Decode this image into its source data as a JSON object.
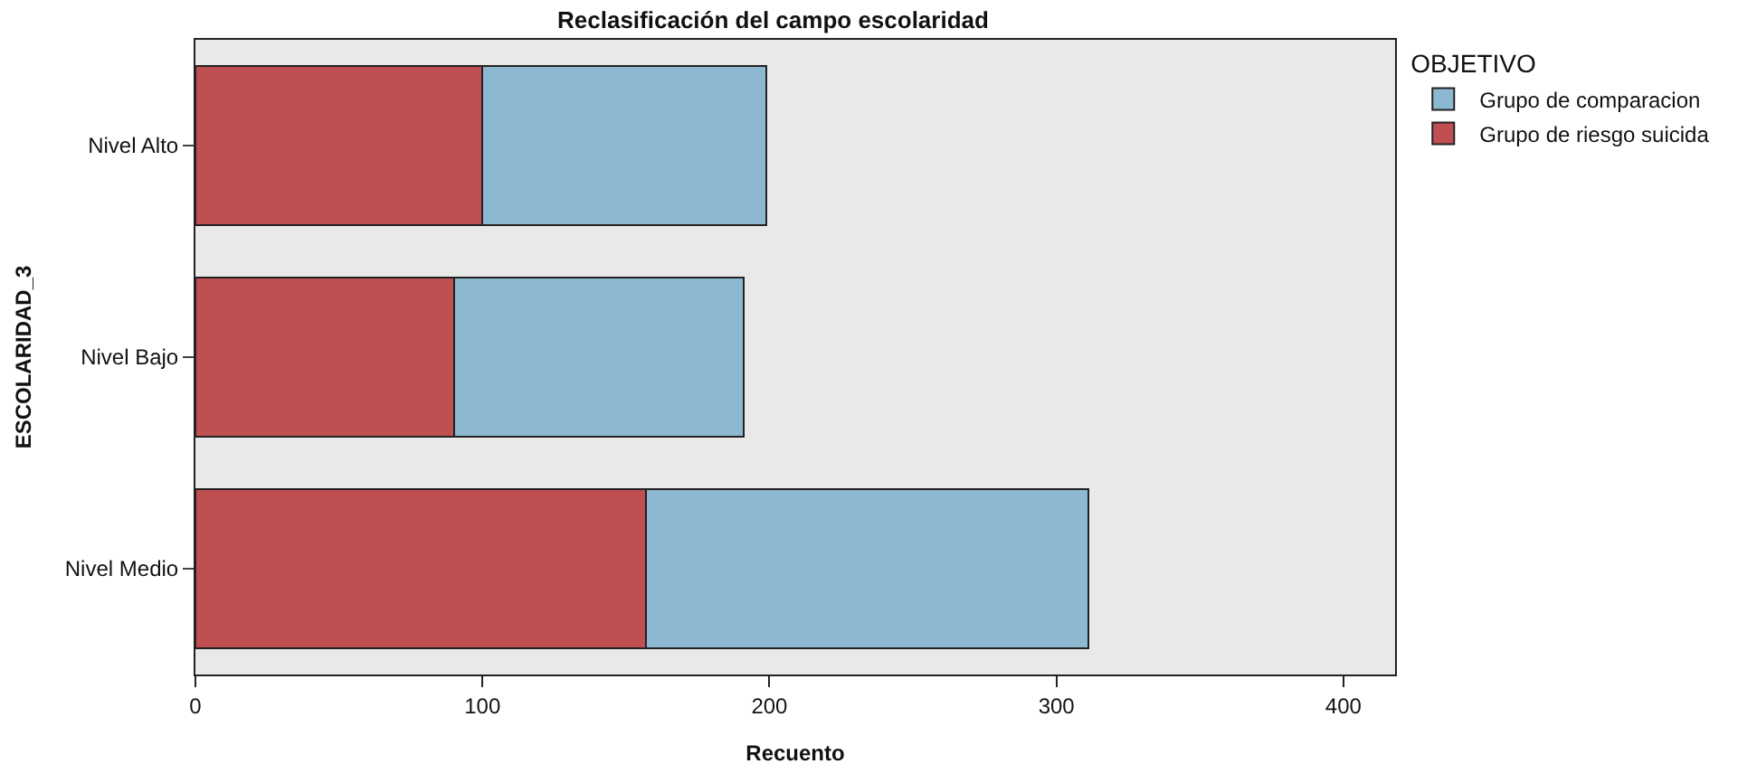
{
  "chart_data": {
    "type": "bar",
    "orientation": "horizontal",
    "stacked": true,
    "title": "Reclasificación del campo escolaridad",
    "xlabel": "Recuento",
    "ylabel": "ESCOLARIDAD_3",
    "legend_title": "OBJETIVO",
    "legend": "top right",
    "categories": [
      "Nivel Alto",
      "Nivel Bajo",
      "Nivel Medio"
    ],
    "series": [
      {
        "name": "Grupo de riesgo suicida",
        "color": "#c04f52",
        "values": [
          100,
          90,
          157
        ]
      },
      {
        "name": "Grupo de comparacion",
        "color": "#8db8d1",
        "values": [
          99,
          101,
          154
        ]
      }
    ],
    "xlim": [
      0,
      418
    ],
    "xticks": [
      0,
      100,
      200,
      300,
      400
    ],
    "grid": false
  }
}
